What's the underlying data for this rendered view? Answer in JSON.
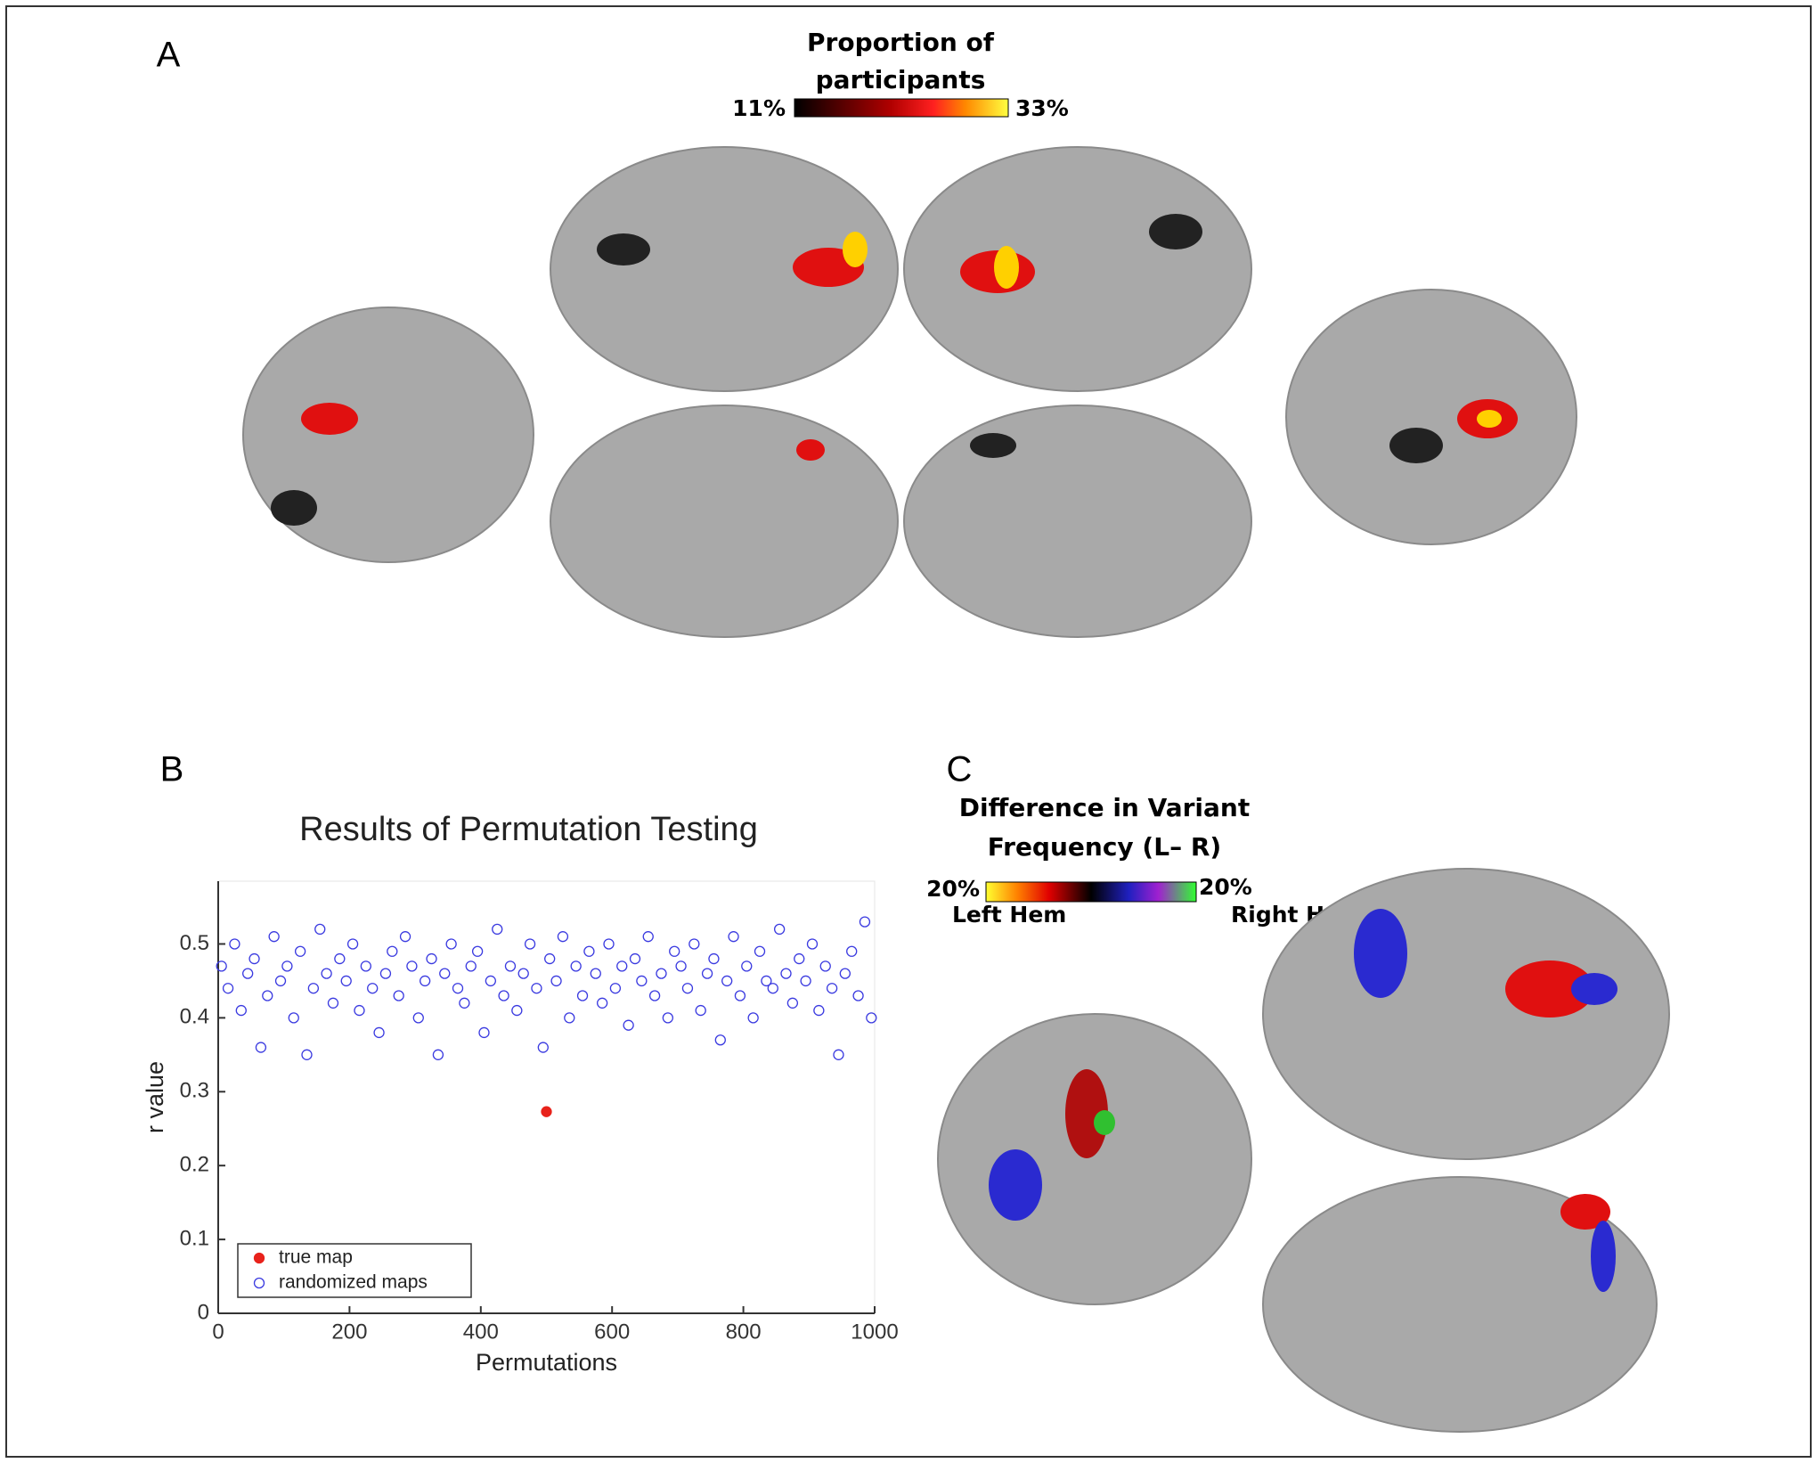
{
  "panel_labels": [
    "A",
    "B",
    "C"
  ],
  "colorbar_a": {
    "title_lines": [
      "Proportion of",
      "participants"
    ],
    "min_label": "11%",
    "max_label": "33%"
  },
  "colorbar_c": {
    "title_lines": [
      "Difference in Variant",
      "Frequency (L– R)"
    ],
    "left_label": "20%",
    "right_label": "20%",
    "left_caption": "Left Hem",
    "right_caption": "Right Hem"
  },
  "chart_data": {
    "type": "scatter",
    "title": "Results of Permutation Testing",
    "x_label": "Permutations",
    "y_label": "r value",
    "xlim": [
      0,
      1000
    ],
    "ylim": [
      0,
      0.585
    ],
    "xticks": [
      0,
      200,
      400,
      600,
      800,
      1000
    ],
    "yticks": [
      0,
      0.1,
      0.2,
      0.3,
      0.4,
      0.5
    ],
    "legend": "lower left",
    "series": [
      {
        "name": "true map",
        "color": "#e8221b",
        "filled": true,
        "x": [
          500
        ],
        "values": [
          0.273
        ]
      },
      {
        "name": "randomized maps",
        "color": "#3a3ae0",
        "filled": false,
        "x": [
          5,
          15,
          25,
          35,
          45,
          55,
          65,
          75,
          85,
          95,
          105,
          115,
          125,
          135,
          145,
          155,
          165,
          175,
          185,
          195,
          205,
          215,
          225,
          235,
          245,
          255,
          265,
          275,
          285,
          295,
          305,
          315,
          325,
          335,
          345,
          355,
          365,
          375,
          385,
          395,
          405,
          415,
          425,
          435,
          445,
          455,
          465,
          475,
          485,
          495,
          505,
          515,
          525,
          535,
          545,
          555,
          565,
          575,
          585,
          595,
          605,
          615,
          625,
          635,
          645,
          655,
          665,
          675,
          685,
          695,
          705,
          715,
          725,
          735,
          745,
          755,
          765,
          775,
          785,
          795,
          805,
          815,
          825,
          835,
          845,
          855,
          865,
          875,
          885,
          895,
          905,
          915,
          925,
          935,
          945,
          955,
          965,
          975,
          985,
          995
        ],
        "values": [
          0.47,
          0.44,
          0.5,
          0.41,
          0.46,
          0.48,
          0.36,
          0.43,
          0.51,
          0.45,
          0.47,
          0.4,
          0.49,
          0.35,
          0.44,
          0.52,
          0.46,
          0.42,
          0.48,
          0.45,
          0.5,
          0.41,
          0.47,
          0.44,
          0.38,
          0.46,
          0.49,
          0.43,
          0.51,
          0.47,
          0.4,
          0.45,
          0.48,
          0.35,
          0.46,
          0.5,
          0.44,
          0.42,
          0.47,
          0.49,
          0.38,
          0.45,
          0.52,
          0.43,
          0.47,
          0.41,
          0.46,
          0.5,
          0.44,
          0.36,
          0.48,
          0.45,
          0.51,
          0.4,
          0.47,
          0.43,
          0.49,
          0.46,
          0.42,
          0.5,
          0.44,
          0.47,
          0.39,
          0.48,
          0.45,
          0.51,
          0.43,
          0.46,
          0.4,
          0.49,
          0.47,
          0.44,
          0.5,
          0.41,
          0.46,
          0.48,
          0.37,
          0.45,
          0.51,
          0.43,
          0.47,
          0.4,
          0.49,
          0.45,
          0.44,
          0.52,
          0.46,
          0.42,
          0.48,
          0.45,
          0.5,
          0.41,
          0.47,
          0.44,
          0.35,
          0.46,
          0.49,
          0.43,
          0.53,
          0.4
        ]
      }
    ]
  }
}
